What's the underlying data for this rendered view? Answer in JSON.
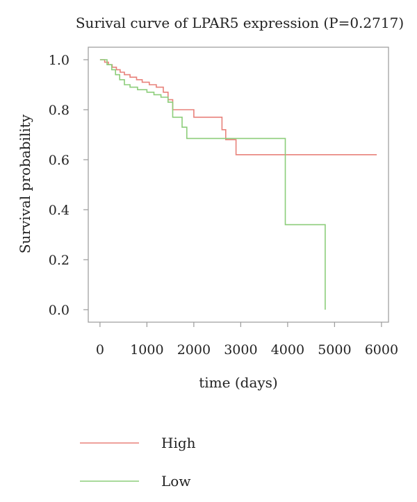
{
  "chart_data": {
    "type": "line",
    "subtype": "step",
    "title": "Surival curve of LPAR5 expression (P=0.2717)",
    "xlabel": "time (days)",
    "ylabel": "Survival probability",
    "xlim": [
      -250,
      6150
    ],
    "ylim": [
      -0.05,
      1.05
    ],
    "xticks": [
      0,
      1000,
      2000,
      3000,
      4000,
      5000,
      6000
    ],
    "yticks": [
      0.0,
      0.2,
      0.4,
      0.6,
      0.8,
      1.0
    ],
    "xtick_labels": [
      "0",
      "1000",
      "2000",
      "3000",
      "4000",
      "5000",
      "6000"
    ],
    "ytick_labels": [
      "0.0",
      "0.2",
      "0.4",
      "0.6",
      "0.8",
      "1.0"
    ],
    "grid": false,
    "legend_position": "bottom-left",
    "series": [
      {
        "name": "High",
        "color": "#e8817a",
        "x": [
          0,
          100,
          180,
          260,
          350,
          430,
          520,
          640,
          780,
          900,
          1050,
          1200,
          1350,
          1450,
          1550,
          2000,
          2600,
          2680,
          2900,
          5900
        ],
        "y": [
          1.0,
          0.99,
          0.98,
          0.97,
          0.96,
          0.95,
          0.94,
          0.93,
          0.92,
          0.91,
          0.9,
          0.89,
          0.87,
          0.84,
          0.8,
          0.77,
          0.72,
          0.68,
          0.62,
          0.62
        ]
      },
      {
        "name": "Low",
        "color": "#8ccd7a",
        "x": [
          0,
          150,
          250,
          330,
          420,
          520,
          640,
          800,
          1000,
          1150,
          1300,
          1450,
          1550,
          1750,
          1850,
          3950,
          4800
        ],
        "y": [
          1.0,
          0.98,
          0.96,
          0.94,
          0.92,
          0.9,
          0.89,
          0.88,
          0.87,
          0.86,
          0.85,
          0.83,
          0.77,
          0.73,
          0.685,
          0.34,
          0.0
        ]
      }
    ]
  }
}
